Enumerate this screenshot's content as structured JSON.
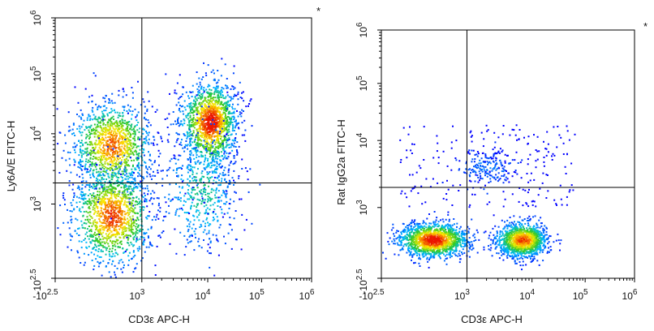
{
  "chart_data": [
    {
      "type": "scatter",
      "style": "density flow-cytometry dot plot (pseudocolor: blue low, green, yellow, red high)",
      "xlabel": "CD3ε APC-H",
      "ylabel": "Ly6A/E FITC-H",
      "corner_mark": "*",
      "x_scale": "biexponential (log above 10^3)",
      "y_scale": "biexponential (log above 10^3)",
      "xlim": [
        "-10^2.5",
        "10^6"
      ],
      "ylim": [
        "-10^2.5",
        "10^6"
      ],
      "x_ticks": [
        {
          "base": "-10",
          "exp": "2.5"
        },
        {
          "base": "10",
          "exp": "3"
        },
        {
          "base": "10",
          "exp": "4"
        },
        {
          "base": "10",
          "exp": "5"
        },
        {
          "base": "10",
          "exp": "6"
        }
      ],
      "y_ticks": [
        {
          "base": "-10",
          "exp": "2.5"
        },
        {
          "base": "10",
          "exp": "3"
        },
        {
          "base": "10",
          "exp": "4"
        },
        {
          "base": "10",
          "exp": "5"
        },
        {
          "base": "10",
          "exp": "6"
        }
      ],
      "quadrant_gate": {
        "x": "10^3",
        "y": "2.0 x 10^3"
      },
      "populations": [
        {
          "x_center_log10": 2.65,
          "y_center_log10": 3.85,
          "relative_density": 0.85
        },
        {
          "x_center_log10": 2.65,
          "y_center_log10": 2.85,
          "relative_density": 0.9
        },
        {
          "x_center_log10": 4.05,
          "y_center_log10": 4.2,
          "relative_density": 1.0
        },
        {
          "x_center_log10": 3.9,
          "y_center_log10": 3.2,
          "relative_density": 0.35
        }
      ]
    },
    {
      "type": "scatter",
      "style": "density flow-cytometry dot plot (pseudocolor: blue low, green, yellow, red high)",
      "xlabel": "CD3ε APC-H",
      "ylabel": "Rat IgG2a FITC-H",
      "corner_mark": "*",
      "x_scale": "biexponential (log above 10^3)",
      "y_scale": "biexponential (log above 10^3)",
      "xlim": [
        "-10^2.5",
        "10^6"
      ],
      "ylim": [
        "-10^2.5",
        "10^6"
      ],
      "x_ticks": [
        {
          "base": "-10",
          "exp": "2.5"
        },
        {
          "base": "10",
          "exp": "3"
        },
        {
          "base": "10",
          "exp": "4"
        },
        {
          "base": "10",
          "exp": "5"
        },
        {
          "base": "10",
          "exp": "6"
        }
      ],
      "y_ticks": [
        {
          "base": "-10",
          "exp": "2.5"
        },
        {
          "base": "10",
          "exp": "3"
        },
        {
          "base": "10",
          "exp": "4"
        },
        {
          "base": "10",
          "exp": "5"
        },
        {
          "base": "10",
          "exp": "6"
        }
      ],
      "quadrant_gate": {
        "x": "10^3",
        "y": "2.0 x 10^3"
      },
      "populations": [
        {
          "x_center_log10": 2.6,
          "y_center_log10": 2.55,
          "relative_density": 1.0
        },
        {
          "x_center_log10": 3.85,
          "y_center_log10": 2.55,
          "relative_density": 0.9
        },
        {
          "x_center_log10": 3.3,
          "y_center_log10": 3.6,
          "relative_density": 0.12
        }
      ]
    }
  ]
}
